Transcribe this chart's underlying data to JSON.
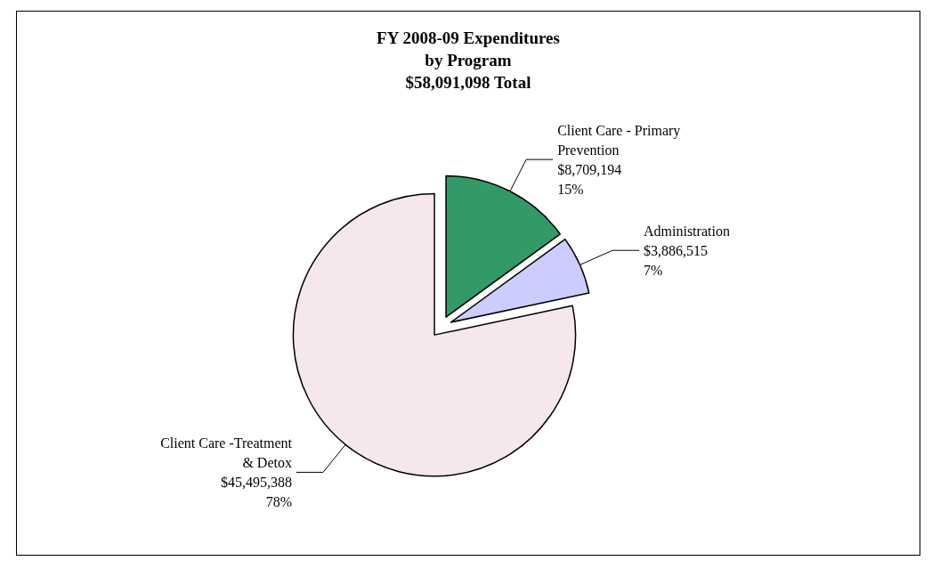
{
  "chart_data": {
    "type": "pie",
    "title": "FY 2008-09 Expenditures\nby Program\n$58,091,098 Total",
    "categories": [
      "Client Care - Primary\nPrevention",
      "Administration",
      "Client Care -Treatment\n& Detox"
    ],
    "values": [
      8709194,
      3886515,
      45495388
    ],
    "value_labels": [
      "$8,709,194\n15%",
      "$3,886,515\n7%",
      "$45,495,388\n78%"
    ],
    "colors": [
      "#339966",
      "#ccccff",
      "#f6e6ee"
    ]
  }
}
